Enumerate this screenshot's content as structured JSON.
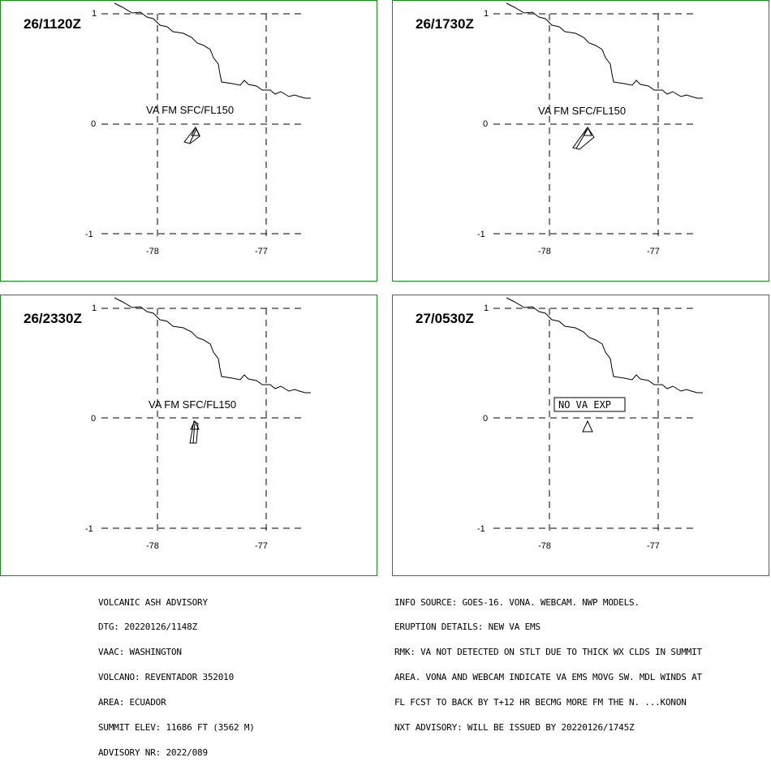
{
  "panels": [
    {
      "time": "26/1120Z",
      "label": "VA FM SFC/FL150",
      "label_type": "ash"
    },
    {
      "time": "26/1730Z",
      "label": "VA FM SFC/FL150",
      "label_type": "ash"
    },
    {
      "time": "26/2330Z",
      "label": "VA FM SFC/FL150",
      "label_type": "ash"
    },
    {
      "time": "27/0530Z",
      "label": "NO VA EXP",
      "label_type": "boxed"
    }
  ],
  "axis": {
    "lat_ticks": [
      "1",
      "0",
      "-1"
    ],
    "lon_ticks": [
      "-78",
      "-77"
    ]
  },
  "colors": {
    "panel_border": "#1a8a1a"
  },
  "advisory_left": [
    "VOLCANIC ASH ADVISORY",
    "DTG: 20220126/1148Z",
    "VAAC: WASHINGTON",
    "VOLCANO: REVENTADOR 352010",
    "AREA: ECUADOR",
    "SUMMIT ELEV: 11686 FT (3562 M)",
    "ADVISORY NR: 2022/089"
  ],
  "advisory_right": [
    "INFO SOURCE: GOES-16. VONA. WEBCAM. NWP MODELS.",
    "ERUPTION DETAILS: NEW VA EMS",
    "RMK: VA NOT DETECTED ON STLT DUE TO THICK WX CLDS IN SUMMIT",
    "AREA. VONA AND WEBCAM INDICATE VA EMS MOVG SW. MDL WINDS AT",
    "FL FCST TO BACK BY T+12 HR BECMG MORE FM THE N. ...KONON",
    "NXT ADVISORY: WILL BE ISSUED BY 20220126/1745Z"
  ]
}
